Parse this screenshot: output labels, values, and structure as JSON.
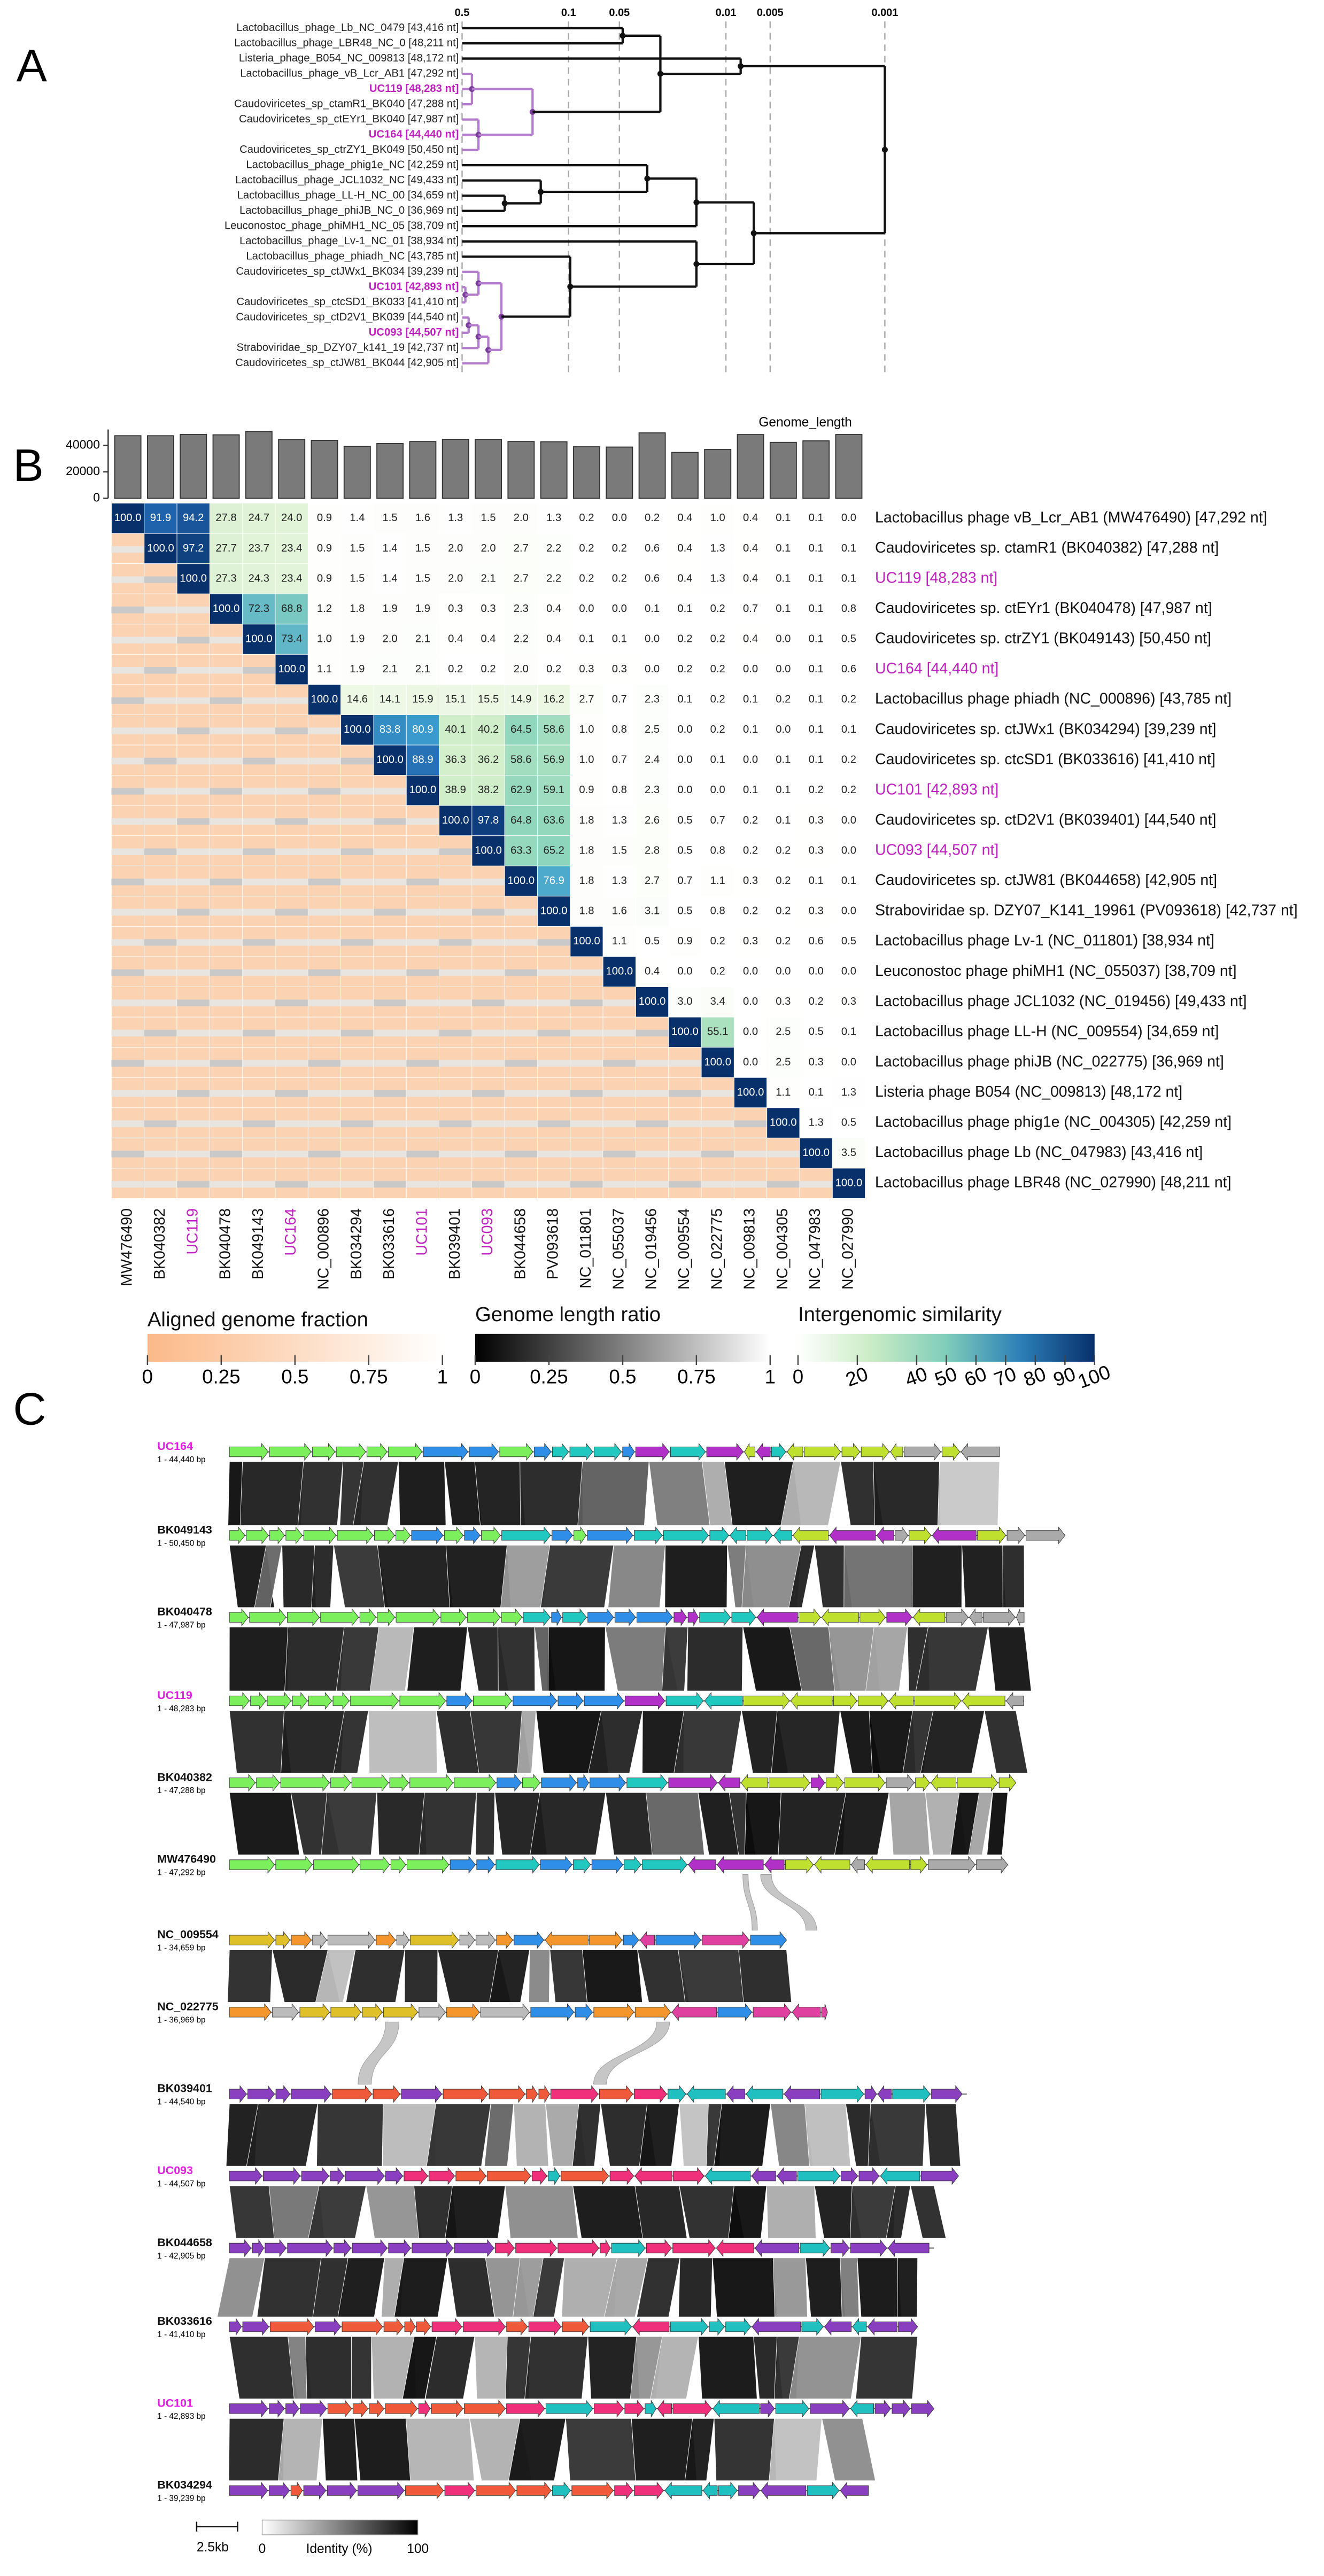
{
  "panel_labels": [
    "A",
    "B",
    "C"
  ],
  "tree": {
    "scale_ticks": [
      "0.5",
      "0.1",
      "0.05",
      "0.01",
      "0.005",
      "0.001"
    ],
    "leaves": [
      {
        "label": "Lactobacillus_phage_Lb_NC_0479 [43,416 nt]",
        "color": "#222222"
      },
      {
        "label": "Lactobacillus_phage_LBR48_NC_0 [48,211 nt]",
        "color": "#222222"
      },
      {
        "label": "Listeria_phage_B054_NC_009813 [48,172 nt]",
        "color": "#222222"
      },
      {
        "label": "Lactobacillus_phage_vB_Lcr_AB1 [47,292 nt]",
        "color": "#222222"
      },
      {
        "label": "UC119 [48,283 nt]",
        "color": "#c01fc0"
      },
      {
        "label": "Caudoviricetes_sp_ctamR1_BK040 [47,288 nt]",
        "color": "#222222"
      },
      {
        "label": "Caudoviricetes_sp_ctEYr1_BK040 [47,987 nt]",
        "color": "#222222"
      },
      {
        "label": "UC164 [44,440 nt]",
        "color": "#c01fc0"
      },
      {
        "label": "Caudoviricetes_sp_ctrZY1_BK049 [50,450 nt]",
        "color": "#222222"
      },
      {
        "label": "Lactobacillus_phage_phig1e_NC [42,259 nt]",
        "color": "#222222"
      },
      {
        "label": "Lactobacillus_phage_JCL1032_NC [49,433 nt]",
        "color": "#222222"
      },
      {
        "label": "Lactobacillus_phage_LL-H_NC_00 [34,659 nt]",
        "color": "#222222"
      },
      {
        "label": "Lactobacillus_phage_phiJB_NC_0 [36,969 nt]",
        "color": "#222222"
      },
      {
        "label": "Leuconostoc_phage_phiMH1_NC_05 [38,709 nt]",
        "color": "#222222"
      },
      {
        "label": "Lactobacillus_phage_Lv-1_NC_01 [38,934 nt]",
        "color": "#222222"
      },
      {
        "label": "Lactobacillus_phage_phiadh_NC [43,785 nt]",
        "color": "#222222"
      },
      {
        "label": "Caudoviricetes_sp_ctJWx1_BK034 [39,239 nt]",
        "color": "#222222"
      },
      {
        "label": "UC101 [42,893 nt]",
        "color": "#c01fc0"
      },
      {
        "label": "Caudoviricetes_sp_ctcSD1_BK033 [41,410 nt]",
        "color": "#222222"
      },
      {
        "label": "Caudoviricetes_sp_ctD2V1_BK039 [44,540 nt]",
        "color": "#222222"
      },
      {
        "label": "UC093 [44,507 nt]",
        "color": "#c01fc0"
      },
      {
        "label": "Straboviridae_sp_DZY07_k141_19 [42,737 nt]",
        "color": "#222222"
      },
      {
        "label": "Caudoviricetes_sp_ctJW81_BK044 [42,905 nt]",
        "color": "#222222"
      }
    ]
  },
  "heatmap": {
    "bar_title": "Genome_length",
    "bar_ylim": [
      0,
      52000
    ],
    "bar_yticks": [
      0,
      20000,
      40000
    ],
    "genome_lengths": [
      47292,
      47288,
      48283,
      47987,
      50450,
      44440,
      43785,
      39239,
      41410,
      42893,
      44540,
      44507,
      42905,
      42737,
      38934,
      38709,
      49433,
      34659,
      36969,
      48172,
      42259,
      43416,
      48211
    ],
    "rows": [
      {
        "label": "Lactobacillus phage vB_Lcr_AB1 (MW476490) [47,292 nt]",
        "color": "#111111"
      },
      {
        "label": "Caudoviricetes sp. ctamR1 (BK040382) [47,288 nt]",
        "color": "#111111"
      },
      {
        "label": "UC119 [48,283 nt]",
        "color": "#c01fc0"
      },
      {
        "label": "Caudoviricetes sp. ctEYr1 (BK040478) [47,987 nt]",
        "color": "#111111"
      },
      {
        "label": "Caudoviricetes sp. ctrZY1 (BK049143) [50,450 nt]",
        "color": "#111111"
      },
      {
        "label": "UC164 [44,440 nt]",
        "color": "#c01fc0"
      },
      {
        "label": "Lactobacillus phage phiadh (NC_000896) [43,785 nt]",
        "color": "#111111"
      },
      {
        "label": "Caudoviricetes sp. ctJWx1 (BK034294) [39,239 nt]",
        "color": "#111111"
      },
      {
        "label": "Caudoviricetes sp. ctcSD1 (BK033616) [41,410 nt]",
        "color": "#111111"
      },
      {
        "label": "UC101 [42,893 nt]",
        "color": "#c01fc0"
      },
      {
        "label": "Caudoviricetes sp. ctD2V1 (BK039401) [44,540 nt]",
        "color": "#111111"
      },
      {
        "label": "UC093 [44,507 nt]",
        "color": "#c01fc0"
      },
      {
        "label": "Caudoviricetes sp. ctJW81 (BK044658) [42,905 nt]",
        "color": "#111111"
      },
      {
        "label": "Straboviridae sp. DZY07_K141_19961 (PV093618) [42,737 nt]",
        "color": "#111111"
      },
      {
        "label": "Lactobacillus phage Lv-1 (NC_011801) [38,934 nt]",
        "color": "#111111"
      },
      {
        "label": "Leuconostoc phage phiMH1 (NC_055037) [38,709 nt]",
        "color": "#111111"
      },
      {
        "label": "Lactobacillus phage JCL1032 (NC_019456) [49,433 nt]",
        "color": "#111111"
      },
      {
        "label": "Lactobacillus phage LL-H (NC_009554) [34,659 nt]",
        "color": "#111111"
      },
      {
        "label": "Lactobacillus phage phiJB (NC_022775) [36,969 nt]",
        "color": "#111111"
      },
      {
        "label": "Listeria phage B054 (NC_009813) [48,172 nt]",
        "color": "#111111"
      },
      {
        "label": "Lactobacillus phage phig1e (NC_004305) [42,259 nt]",
        "color": "#111111"
      },
      {
        "label": "Lactobacillus phage Lb (NC_047983) [43,416 nt]",
        "color": "#111111"
      },
      {
        "label": "Lactobacillus phage LBR48 (NC_027990) [48,211 nt]",
        "color": "#111111"
      }
    ],
    "columns": [
      {
        "label": "MW476490",
        "color": "#111111"
      },
      {
        "label": "BK040382",
        "color": "#111111"
      },
      {
        "label": "UC119",
        "color": "#c01fc0"
      },
      {
        "label": "BK040478",
        "color": "#111111"
      },
      {
        "label": "BK049143",
        "color": "#111111"
      },
      {
        "label": "UC164",
        "color": "#c01fc0"
      },
      {
        "label": "NC_000896",
        "color": "#111111"
      },
      {
        "label": "BK034294",
        "color": "#111111"
      },
      {
        "label": "BK033616",
        "color": "#111111"
      },
      {
        "label": "UC101",
        "color": "#c01fc0"
      },
      {
        "label": "BK039401",
        "color": "#111111"
      },
      {
        "label": "UC093",
        "color": "#c01fc0"
      },
      {
        "label": "BK044658",
        "color": "#111111"
      },
      {
        "label": "PV093618",
        "color": "#111111"
      },
      {
        "label": "NC_011801",
        "color": "#111111"
      },
      {
        "label": "NC_055037",
        "color": "#111111"
      },
      {
        "label": "NC_019456",
        "color": "#111111"
      },
      {
        "label": "NC_009554",
        "color": "#111111"
      },
      {
        "label": "NC_022775",
        "color": "#111111"
      },
      {
        "label": "NC_009813",
        "color": "#111111"
      },
      {
        "label": "NC_004305",
        "color": "#111111"
      },
      {
        "label": "NC_047983",
        "color": "#111111"
      },
      {
        "label": "NC_027990",
        "color": "#111111"
      }
    ],
    "similarity": [
      [
        "100.0",
        "91.9",
        "94.2",
        "27.8",
        "24.7",
        "24.0",
        "0.9",
        "1.4",
        "1.5",
        "1.6",
        "1.3",
        "1.5",
        "2.0",
        "1.3",
        "0.2",
        "0.0",
        "0.2",
        "0.4",
        "1.0",
        "0.4",
        "0.1",
        "0.1",
        "0.0"
      ],
      [
        "100.0",
        "97.2",
        "27.7",
        "23.7",
        "23.4",
        "0.9",
        "1.5",
        "1.4",
        "1.5",
        "2.0",
        "2.0",
        "2.7",
        "2.2",
        "0.2",
        "0.2",
        "0.6",
        "0.4",
        "1.3",
        "0.4",
        "0.1",
        "0.1",
        "0.1"
      ],
      [
        "100.0",
        "27.3",
        "24.3",
        "23.4",
        "0.9",
        "1.5",
        "1.4",
        "1.5",
        "2.0",
        "2.1",
        "2.7",
        "2.2",
        "0.2",
        "0.2",
        "0.6",
        "0.4",
        "1.3",
        "0.4",
        "0.1",
        "0.1",
        "0.1"
      ],
      [
        "100.0",
        "72.3",
        "68.8",
        "1.2",
        "1.8",
        "1.9",
        "1.9",
        "0.3",
        "0.3",
        "2.3",
        "0.4",
        "0.0",
        "0.0",
        "0.1",
        "0.1",
        "0.2",
        "0.7",
        "0.1",
        "0.1",
        "0.8"
      ],
      [
        "100.0",
        "73.4",
        "1.0",
        "1.9",
        "2.0",
        "2.1",
        "0.4",
        "0.4",
        "2.2",
        "0.4",
        "0.1",
        "0.1",
        "0.0",
        "0.2",
        "0.2",
        "0.4",
        "0.0",
        "0.1",
        "0.5"
      ],
      [
        "100.0",
        "1.1",
        "1.9",
        "2.1",
        "2.1",
        "0.2",
        "0.2",
        "2.0",
        "0.2",
        "0.3",
        "0.3",
        "0.0",
        "0.2",
        "0.2",
        "0.0",
        "0.0",
        "0.1",
        "0.6"
      ],
      [
        "100.0",
        "14.6",
        "14.1",
        "15.9",
        "15.1",
        "15.5",
        "14.9",
        "16.2",
        "2.7",
        "0.7",
        "2.3",
        "0.1",
        "0.2",
        "0.1",
        "0.2",
        "0.1",
        "0.2"
      ],
      [
        "100.0",
        "83.8",
        "80.9",
        "40.1",
        "40.2",
        "64.5",
        "58.6",
        "1.0",
        "0.8",
        "2.5",
        "0.0",
        "0.2",
        "0.1",
        "0.0",
        "0.1",
        "0.1"
      ],
      [
        "100.0",
        "88.9",
        "36.3",
        "36.2",
        "58.6",
        "56.9",
        "1.0",
        "0.7",
        "2.4",
        "0.0",
        "0.1",
        "0.0",
        "0.1",
        "0.1",
        "0.2"
      ],
      [
        "100.0",
        "38.9",
        "38.2",
        "62.9",
        "59.1",
        "0.9",
        "0.8",
        "2.3",
        "0.0",
        "0.0",
        "0.1",
        "0.1",
        "0.2",
        "0.2"
      ],
      [
        "100.0",
        "97.8",
        "64.8",
        "63.6",
        "1.8",
        "1.3",
        "2.6",
        "0.5",
        "0.7",
        "0.2",
        "0.1",
        "0.3",
        "0.0"
      ],
      [
        "100.0",
        "63.3",
        "65.2",
        "1.8",
        "1.5",
        "2.8",
        "0.5",
        "0.8",
        "0.2",
        "0.2",
        "0.3",
        "0.0"
      ],
      [
        "100.0",
        "76.9",
        "1.8",
        "1.3",
        "2.7",
        "0.7",
        "1.1",
        "0.3",
        "0.2",
        "0.1",
        "0.1"
      ],
      [
        "100.0",
        "1.8",
        "1.6",
        "3.1",
        "0.5",
        "0.8",
        "0.2",
        "0.2",
        "0.3",
        "0.0"
      ],
      [
        "100.0",
        "1.1",
        "0.5",
        "0.9",
        "0.2",
        "0.3",
        "0.2",
        "0.6",
        "0.5"
      ],
      [
        "100.0",
        "0.4",
        "0.0",
        "0.2",
        "0.0",
        "0.0",
        "0.0",
        "0.0"
      ],
      [
        "100.0",
        "3.0",
        "3.4",
        "0.0",
        "0.3",
        "0.2",
        "0.3"
      ],
      [
        "100.0",
        "55.1",
        "0.0",
        "2.5",
        "0.5",
        "0.1"
      ],
      [
        "100.0",
        "0.0",
        "2.5",
        "0.3",
        "0.0"
      ],
      [
        "100.0",
        "1.1",
        "0.1",
        "1.3"
      ],
      [
        "100.0",
        "1.3",
        "0.5"
      ],
      [
        "100.0",
        "3.5"
      ],
      [
        "100.0"
      ]
    ],
    "legends": [
      {
        "title": "Aligned genome fraction",
        "ticks": [
          0,
          0.25,
          0.5,
          0.75,
          1
        ],
        "colors": [
          "#fbb988",
          "#ffffff"
        ]
      },
      {
        "title": "Genome length ratio",
        "ticks": [
          0,
          0.25,
          0.5,
          0.75,
          1
        ],
        "colors": [
          "#000000",
          "#ffffff"
        ]
      },
      {
        "title": "Intergenomic similarity",
        "ticks": [
          0,
          20,
          40,
          50,
          60,
          70,
          80,
          90,
          100
        ],
        "colors": [
          "#ffffff",
          "#c9ecc4",
          "#7fcdbb",
          "#2c7fb8",
          "#08306b"
        ]
      }
    ]
  },
  "synteny": {
    "genomes": [
      {
        "name": "UC164",
        "range": "1 - 44,440 bp",
        "color": "#e020e0"
      },
      {
        "name": "BK049143",
        "range": "1 - 50,450 bp",
        "color": "#111111"
      },
      {
        "name": "BK040478",
        "range": "1 - 47,987 bp",
        "color": "#111111"
      },
      {
        "name": "UC119",
        "range": "1 - 48,283 bp",
        "color": "#e020e0"
      },
      {
        "name": "BK040382",
        "range": "1 - 47,288 bp",
        "color": "#111111"
      },
      {
        "name": "MW476490",
        "range": "1 - 47,292 bp",
        "color": "#111111"
      },
      {
        "name": "NC_009554",
        "range": "1 - 34,659 bp",
        "color": "#111111"
      },
      {
        "name": "NC_022775",
        "range": "1 - 36,969 bp",
        "color": "#111111"
      },
      {
        "name": "BK039401",
        "range": "1 - 44,540 bp",
        "color": "#111111"
      },
      {
        "name": "UC093",
        "range": "1 - 44,507 bp",
        "color": "#e020e0"
      },
      {
        "name": "BK044658",
        "range": "1 - 42,905 bp",
        "color": "#111111"
      },
      {
        "name": "BK033616",
        "range": "1 - 41,410 bp",
        "color": "#111111"
      },
      {
        "name": "UC101",
        "range": "1 - 42,893 bp",
        "color": "#e020e0"
      },
      {
        "name": "BK034294",
        "range": "1 - 39,239 bp",
        "color": "#111111"
      }
    ],
    "scale_label": "2.5kb",
    "identity_title": "Identity (%)",
    "identity_ticks": [
      "0",
      "100"
    ]
  }
}
